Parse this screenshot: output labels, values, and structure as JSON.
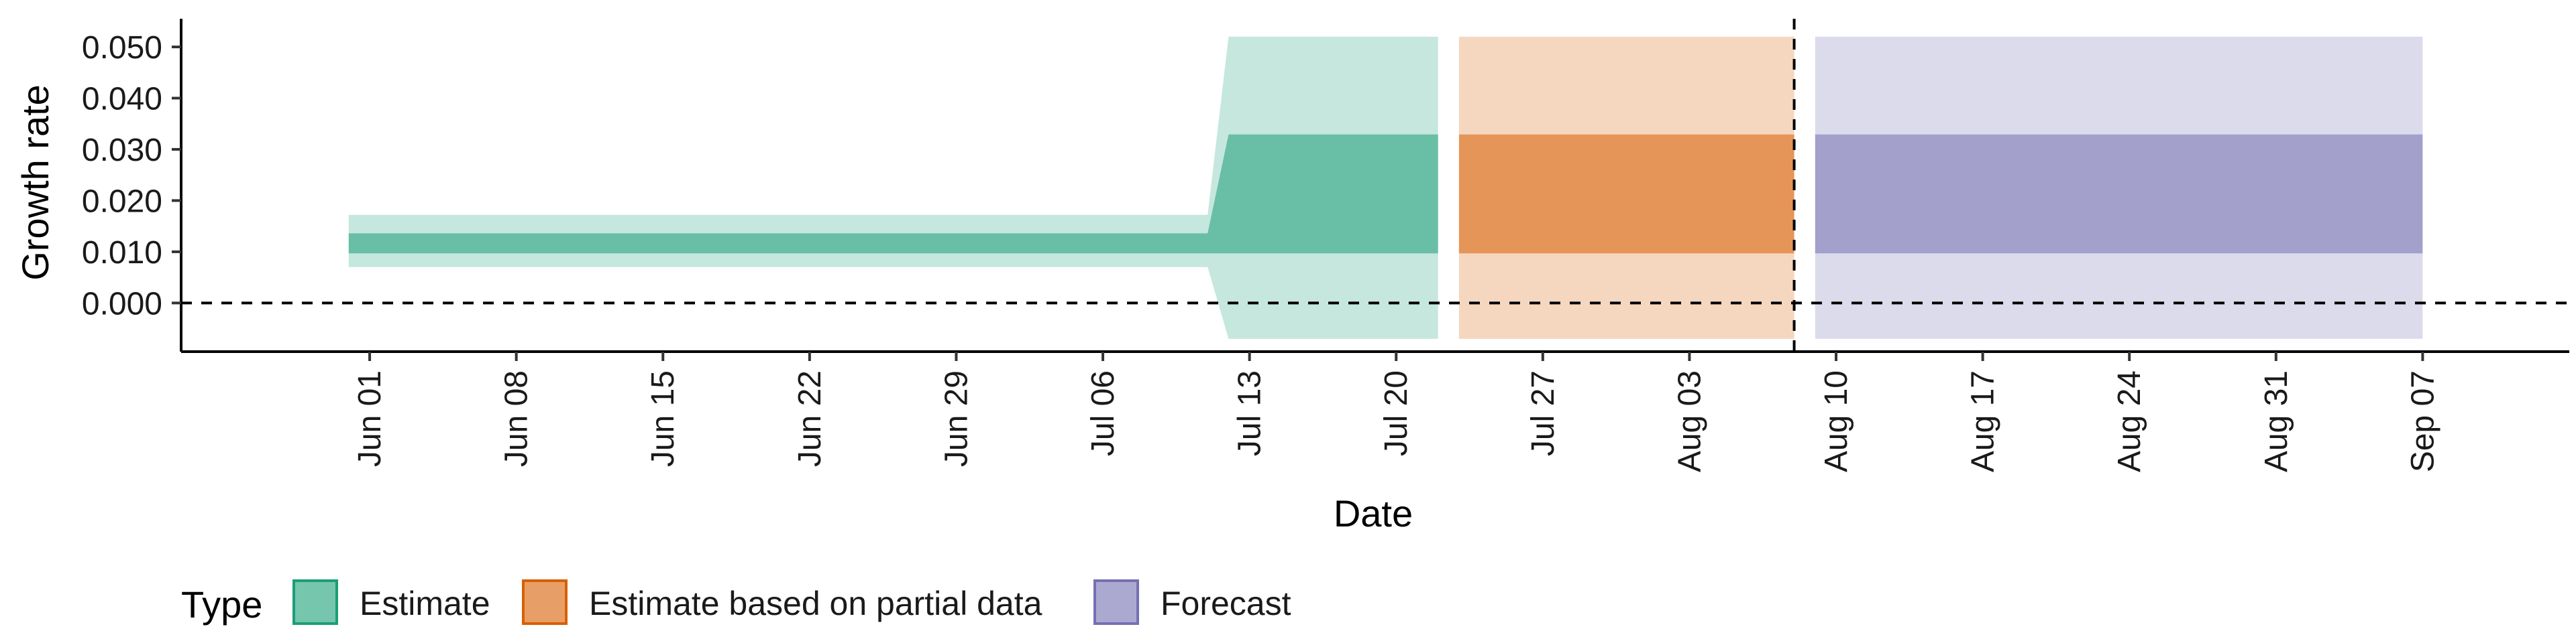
{
  "chart_data": {
    "type": "area",
    "xlabel": "Date",
    "ylabel": "Growth rate",
    "xlim": [
      "2020-05-23",
      "2020-09-14"
    ],
    "ylim": [
      -0.0095,
      0.0555
    ],
    "grid": false,
    "legend_position": "bottom",
    "x_ticks": [
      {
        "date": "2020-06-01",
        "label": "Jun 01"
      },
      {
        "date": "2020-06-08",
        "label": "Jun 08"
      },
      {
        "date": "2020-06-15",
        "label": "Jun 15"
      },
      {
        "date": "2020-06-22",
        "label": "Jun 22"
      },
      {
        "date": "2020-06-29",
        "label": "Jun 29"
      },
      {
        "date": "2020-07-06",
        "label": "Jul 06"
      },
      {
        "date": "2020-07-13",
        "label": "Jul 13"
      },
      {
        "date": "2020-07-20",
        "label": "Jul 20"
      },
      {
        "date": "2020-07-27",
        "label": "Jul 27"
      },
      {
        "date": "2020-08-03",
        "label": "Aug 03"
      },
      {
        "date": "2020-08-10",
        "label": "Aug 10"
      },
      {
        "date": "2020-08-17",
        "label": "Aug 17"
      },
      {
        "date": "2020-08-24",
        "label": "Aug 24"
      },
      {
        "date": "2020-08-31",
        "label": "Aug 31"
      },
      {
        "date": "2020-09-07",
        "label": "Sep 07"
      }
    ],
    "y_ticks": [
      {
        "value": 0.0,
        "label": "0.000"
      },
      {
        "value": 0.01,
        "label": "0.010"
      },
      {
        "value": 0.02,
        "label": "0.020"
      },
      {
        "value": 0.03,
        "label": "0.030"
      },
      {
        "value": 0.04,
        "label": "0.040"
      },
      {
        "value": 0.05,
        "label": "0.050"
      }
    ],
    "reference_lines": [
      {
        "axis": "y",
        "value": 0.0,
        "style": "dashed"
      },
      {
        "axis": "x",
        "value": "2020-08-08",
        "style": "dashed"
      }
    ],
    "legend_title": "Type",
    "series": [
      {
        "name": "Estimate",
        "color": "#1b9e77",
        "points": [
          {
            "x": "2020-05-31",
            "lower_90": 0.007,
            "lower_50": 0.0097,
            "upper_50": 0.0136,
            "upper_90": 0.0172
          },
          {
            "x": "2020-07-11",
            "lower_90": 0.007,
            "lower_50": 0.0097,
            "upper_50": 0.0136,
            "upper_90": 0.0172
          },
          {
            "x": "2020-07-12",
            "lower_90": -0.007,
            "lower_50": 0.0097,
            "upper_50": 0.0329,
            "upper_90": 0.052
          },
          {
            "x": "2020-07-22",
            "lower_90": -0.007,
            "lower_50": 0.0097,
            "upper_50": 0.0329,
            "upper_90": 0.052
          }
        ]
      },
      {
        "name": "Estimate based on partial data",
        "color": "#d95f02",
        "points": [
          {
            "x": "2020-07-23",
            "lower_90": -0.007,
            "lower_50": 0.0097,
            "upper_50": 0.0329,
            "upper_90": 0.052
          },
          {
            "x": "2020-08-08",
            "lower_90": -0.007,
            "lower_50": 0.0097,
            "upper_50": 0.0329,
            "upper_90": 0.052
          }
        ]
      },
      {
        "name": "Forecast",
        "color": "#7570b3",
        "points": [
          {
            "x": "2020-08-09",
            "lower_90": -0.007,
            "lower_50": 0.0097,
            "upper_50": 0.0329,
            "upper_90": 0.052
          },
          {
            "x": "2020-09-07",
            "lower_90": -0.007,
            "lower_50": 0.0097,
            "upper_50": 0.0329,
            "upper_90": 0.052
          }
        ]
      }
    ]
  }
}
